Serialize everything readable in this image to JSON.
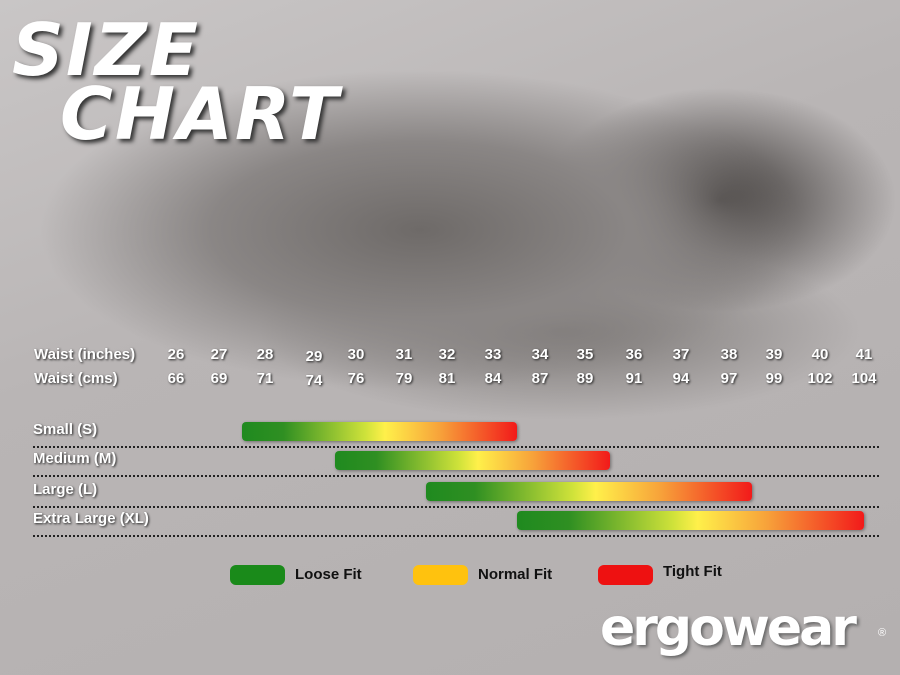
{
  "title": {
    "line1": "SIZE",
    "line2": "CHART"
  },
  "chart_data": {
    "type": "bar",
    "subtype": "range",
    "row_labels": [
      "Waist (inches)",
      "Waist (cms)"
    ],
    "waist_inches": [
      "26",
      "27",
      "28",
      "29",
      "30",
      "31",
      "32",
      "33",
      "34",
      "35",
      "36",
      "37",
      "38",
      "39",
      "40",
      "41"
    ],
    "waist_cms": [
      "66",
      "69",
      "71",
      "74",
      "76",
      "79",
      "81",
      "84",
      "87",
      "89",
      "91",
      "94",
      "97",
      "99",
      "102",
      "104"
    ],
    "sizes": [
      {
        "label": "Small (S)",
        "from": 28,
        "to": 33
      },
      {
        "label": "Medium (M)",
        "from": 30,
        "to": 35
      },
      {
        "label": "Large (L)",
        "from": 32,
        "to": 38
      },
      {
        "label": "Extra Large (XL)",
        "from": 34,
        "to": 41
      }
    ],
    "legend": [
      {
        "label": "Loose Fit",
        "color": "#1a8a1a"
      },
      {
        "label": "Normal Fit",
        "color": "#ffc20e"
      },
      {
        "label": "Tight Fit",
        "color": "#ee1111"
      }
    ],
    "legend_placement": "bottom"
  },
  "brand": {
    "logo": "ergowear",
    "registered": "®"
  }
}
